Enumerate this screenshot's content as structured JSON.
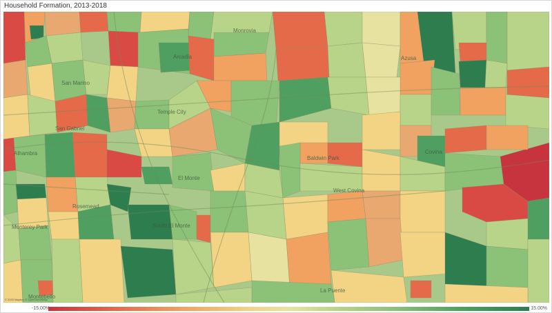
{
  "title": "Household Formation, 2013-2018",
  "legend": {
    "min_label": "-15.00%",
    "max_label": "15.00%",
    "colors": [
      "#c8343d",
      "#e46a4a",
      "#f1a260",
      "#f3d384",
      "#e8e2a0",
      "#b8d488",
      "#8cc178",
      "#4f9f60",
      "#2e7d4f"
    ]
  },
  "copyright": "© 2020 Mapbox © OpenStreetMap",
  "places": [
    {
      "name": "Monrovia"
    },
    {
      "name": "Arcadia"
    },
    {
      "name": "Azusa"
    },
    {
      "name": "Alhambra"
    },
    {
      "name": "San Gabriel"
    },
    {
      "name": "Temple City"
    },
    {
      "name": "El Monte"
    },
    {
      "name": "Rosemead"
    },
    {
      "name": "Monterey Park"
    },
    {
      "name": "South El Monte"
    },
    {
      "name": "West Covina"
    },
    {
      "name": "Covina"
    },
    {
      "name": "Baldwin Park"
    },
    {
      "name": "San Marino"
    },
    {
      "name": "La Puente"
    },
    {
      "name": "Montebello"
    }
  ]
}
